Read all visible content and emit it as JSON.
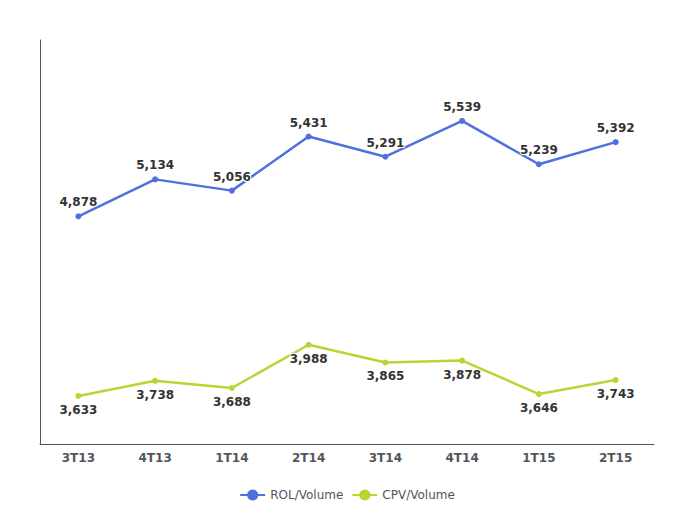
{
  "chart_data": {
    "type": "line",
    "categories": [
      "3T13",
      "4T13",
      "1T14",
      "2T14",
      "3T14",
      "4T14",
      "1T15",
      "2T15"
    ],
    "series": [
      {
        "name": "ROL/Volume",
        "values": [
          4878,
          5134,
          5056,
          5431,
          5291,
          5539,
          5239,
          5392
        ],
        "value_labels": [
          "4,878",
          "5,134",
          "5,056",
          "5,431",
          "5,291",
          "5,539",
          "5,239",
          "5,392"
        ]
      },
      {
        "name": "CPV/Volume",
        "values": [
          3633,
          3738,
          3688,
          3988,
          3865,
          3878,
          3646,
          3743
        ],
        "value_labels": [
          "3,633",
          "3,738",
          "3,688",
          "3,988",
          "3,865",
          "3,878",
          "3,646",
          "3,743"
        ]
      }
    ],
    "ylim": [
      3300,
      6100
    ],
    "data_labels": true,
    "tick_labels": "x",
    "grid": false,
    "legend": "bottom"
  }
}
